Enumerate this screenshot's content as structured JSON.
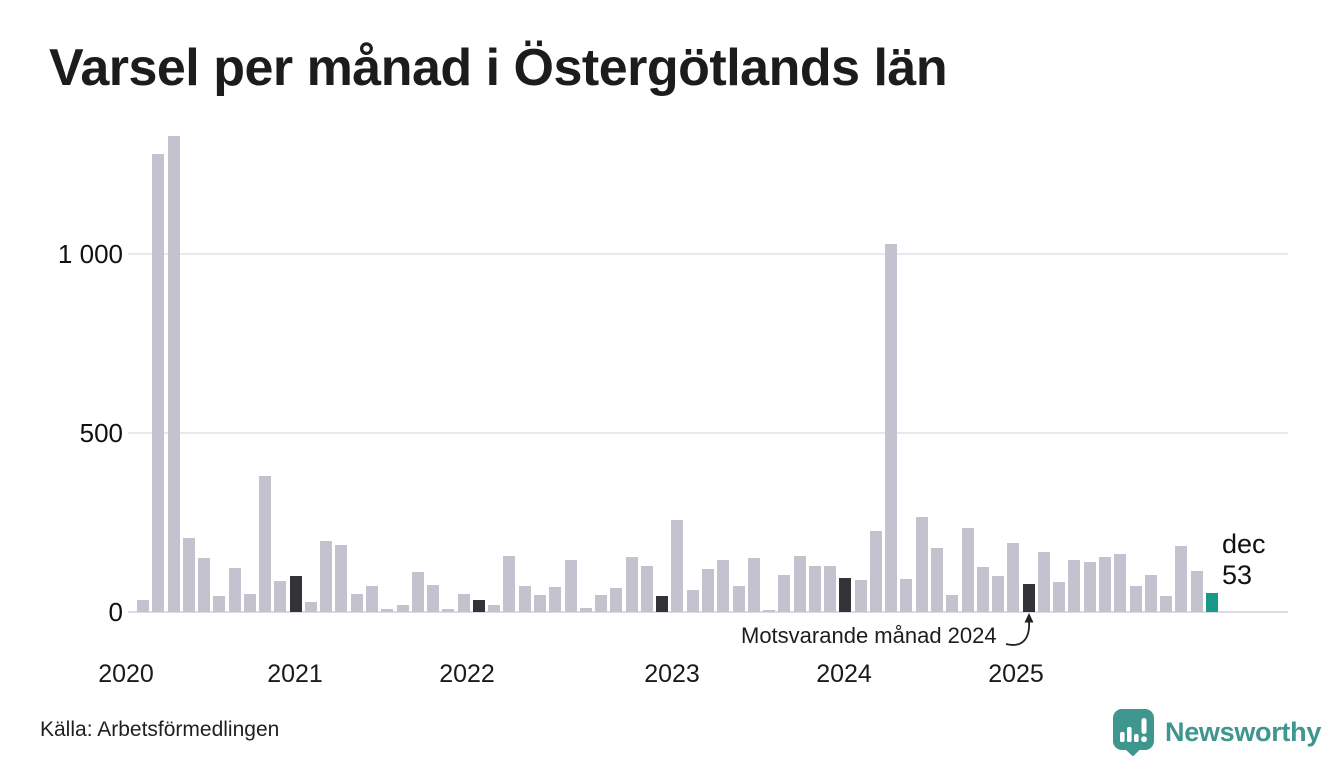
{
  "title": "Varsel per månad i Östergötlands län",
  "footer": {
    "source": "Källa: Arbetsförmedlingen",
    "brand": "Newsworthy"
  },
  "annotation": {
    "label": "Motsvarande månad 2024"
  },
  "latest_label": {
    "month": "dec",
    "value": "53"
  },
  "colors": {
    "bar": "#c5c2cf",
    "bar_dark": "#343338",
    "bar_accent": "#17998b",
    "brand": "#3e968e",
    "grid": "#e9e8ee",
    "axis": "#dddce2"
  },
  "chart_data": {
    "type": "bar",
    "title": "Varsel per månad i Östergötlands län",
    "x": [
      "2020-01",
      "2020-02",
      "2020-03",
      "2020-04",
      "2020-05",
      "2020-06",
      "2020-07",
      "2020-08",
      "2020-09",
      "2020-10",
      "2020-11",
      "2020-12",
      "2021-01",
      "2021-02",
      "2021-03",
      "2021-04",
      "2021-05",
      "2021-06",
      "2021-07",
      "2021-08",
      "2021-09",
      "2021-10",
      "2021-11",
      "2021-12",
      "2022-01",
      "2022-02",
      "2022-03",
      "2022-04",
      "2022-05",
      "2022-06",
      "2022-07",
      "2022-08",
      "2022-09",
      "2022-10",
      "2022-11",
      "2022-12",
      "2023-01",
      "2023-02",
      "2023-03",
      "2023-04",
      "2023-05",
      "2023-06",
      "2023-07",
      "2023-08",
      "2023-09",
      "2023-10",
      "2023-11",
      "2023-12",
      "2024-01",
      "2024-02",
      "2024-03",
      "2024-04",
      "2024-05",
      "2024-06",
      "2024-07",
      "2024-08",
      "2024-09",
      "2024-10",
      "2024-11",
      "2024-12",
      "2025-01",
      "2025-02",
      "2025-03",
      "2025-04",
      "2025-05",
      "2025-06",
      "2025-07",
      "2025-08",
      "2025-09",
      "2025-10",
      "2025-11",
      "2025-12"
    ],
    "values": [
      0,
      33,
      1280,
      1330,
      207,
      152,
      45,
      124,
      50,
      380,
      87,
      101,
      29,
      200,
      187,
      50,
      74,
      8,
      21,
      111,
      77,
      8,
      50,
      33,
      21,
      156,
      74,
      47,
      69,
      146,
      12,
      47,
      67,
      153,
      129,
      45,
      258,
      63,
      120,
      146,
      74,
      152,
      6,
      105,
      158,
      128,
      129,
      95,
      90,
      228,
      1030,
      93,
      265,
      180,
      48,
      236,
      125,
      100,
      194,
      78,
      168,
      84,
      146,
      141,
      154,
      162,
      72,
      103,
      45,
      185,
      114,
      53
    ],
    "dark_indices": [
      11,
      23,
      35,
      47,
      59
    ],
    "dark_meaning": "Motsvarande månad 2024",
    "accent_index": 71,
    "accent_point": {
      "x": "2025-12",
      "label": "dec",
      "value": 53
    },
    "year_ticks": [
      "2020",
      "2021",
      "2022",
      "2023",
      "2024",
      "2025"
    ],
    "yticks": [
      0,
      500,
      1000
    ],
    "ytick_labels": [
      "0",
      "500",
      "1 000"
    ],
    "ylim": [
      0,
      1376
    ],
    "grid": "horizontal",
    "legend": "none"
  }
}
